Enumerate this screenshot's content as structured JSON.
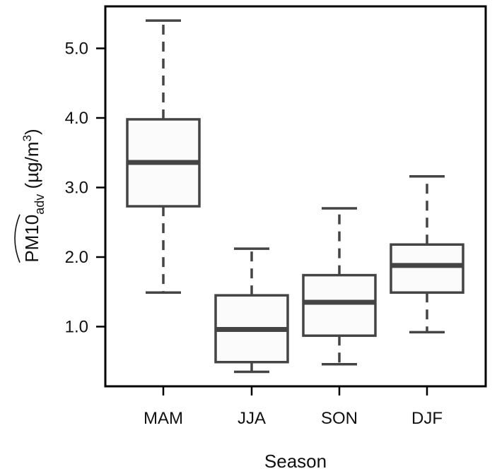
{
  "chart_data": {
    "type": "boxplot",
    "xlabel": "Season",
    "ylabel": {
      "main": "PM10",
      "subscript": "adv",
      "unit_open": " (µg/m",
      "unit_sup": "3",
      "unit_close": ")",
      "hat": true
    },
    "ylim": [
      0.2,
      5.68
    ],
    "y_ticks": [
      1.0,
      2.0,
      3.0,
      4.0,
      5.0
    ],
    "y_tick_labels": [
      "1.0",
      "2.0",
      "3.0",
      "4.0",
      "5.0"
    ],
    "categories": [
      "MAM",
      "JJA",
      "SON",
      "DJF"
    ],
    "boxes": [
      {
        "category": "MAM",
        "whisker_low": 1.49,
        "q1": 2.73,
        "median": 3.36,
        "q3": 3.98,
        "whisker_high": 5.4
      },
      {
        "category": "JJA",
        "whisker_low": 0.35,
        "q1": 0.49,
        "median": 0.96,
        "q3": 1.45,
        "whisker_high": 2.12
      },
      {
        "category": "SON",
        "whisker_low": 0.46,
        "q1": 0.87,
        "median": 1.35,
        "q3": 1.74,
        "whisker_high": 2.7
      },
      {
        "category": "DJF",
        "whisker_low": 0.92,
        "q1": 1.49,
        "median": 1.88,
        "q3": 2.18,
        "whisker_high": 3.16
      }
    ],
    "grid": false,
    "legend": "none",
    "colors": {
      "box_stroke": "#444444",
      "box_fill": "#fbfbfb",
      "frame": "#000000",
      "text": "#111111"
    }
  }
}
